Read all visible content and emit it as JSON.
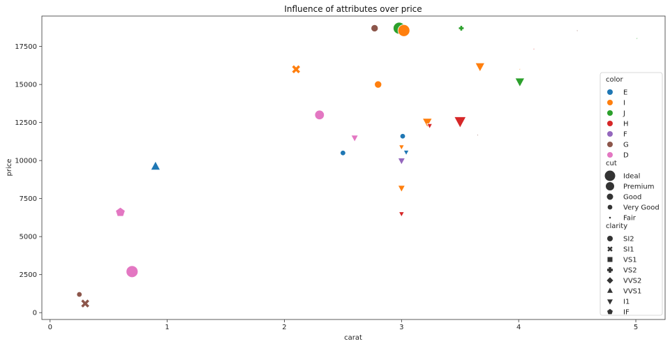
{
  "chart_data": {
    "type": "scatter",
    "title": "Influence of attributes over price",
    "xlabel": "carat",
    "ylabel": "price",
    "xlim": [
      -0.07,
      5.25
    ],
    "ylim": [
      -450,
      19500
    ],
    "x_ticks": [
      0,
      1,
      2,
      3,
      4,
      5
    ],
    "y_ticks": [
      0,
      2500,
      5000,
      7500,
      10000,
      12500,
      15000,
      17500
    ],
    "grid": false,
    "legend_placement": "right",
    "legend": {
      "color": {
        "title": "color",
        "entries": [
          {
            "label": "E",
            "color": "#1f77b4"
          },
          {
            "label": "I",
            "color": "#ff7f0e"
          },
          {
            "label": "J",
            "color": "#2ca02c"
          },
          {
            "label": "H",
            "color": "#d62728"
          },
          {
            "label": "F",
            "color": "#9467bd"
          },
          {
            "label": "G",
            "color": "#8c564b"
          },
          {
            "label": "D",
            "color": "#e377c2"
          }
        ]
      },
      "cut": {
        "title": "cut",
        "entries": [
          {
            "label": "Ideal",
            "size": 1.0
          },
          {
            "label": "Premium",
            "size": 0.8
          },
          {
            "label": "Good",
            "size": 0.6
          },
          {
            "label": "Very Good",
            "size": 0.45
          },
          {
            "label": "Fair",
            "size": 0.15
          }
        ]
      },
      "clarity": {
        "title": "clarity",
        "entries": [
          {
            "label": "SI2",
            "marker": "circle"
          },
          {
            "label": "SI1",
            "marker": "x"
          },
          {
            "label": "VS1",
            "marker": "square"
          },
          {
            "label": "VS2",
            "marker": "plus"
          },
          {
            "label": "VVS2",
            "marker": "diamond"
          },
          {
            "label": "VVS1",
            "marker": "triangle-up"
          },
          {
            "label": "I1",
            "marker": "triangle-down"
          },
          {
            "label": "IF",
            "marker": "pentagon"
          }
        ]
      }
    },
    "points": [
      {
        "x": 2.98,
        "y": 18700,
        "color": "J",
        "cut": "Ideal",
        "clarity": "SI2"
      },
      {
        "x": 3.02,
        "y": 18550,
        "color": "I",
        "cut": "Ideal",
        "clarity": "SI2"
      },
      {
        "x": 3.51,
        "y": 18700,
        "color": "J",
        "cut": "Very Good",
        "clarity": "VS2"
      },
      {
        "x": 4.5,
        "y": 18530,
        "color": "G",
        "cut": "Fair",
        "clarity": "I1"
      },
      {
        "x": 5.01,
        "y": 18020,
        "color": "J",
        "cut": "Fair",
        "clarity": "I1"
      },
      {
        "x": 4.13,
        "y": 17330,
        "color": "H",
        "cut": "Fair",
        "clarity": "I1"
      },
      {
        "x": 3.67,
        "y": 16200,
        "color": "I",
        "cut": "Premium",
        "clarity": "I1"
      },
      {
        "x": 4.01,
        "y": 16000,
        "color": "I",
        "cut": "Fair",
        "clarity": "I1"
      },
      {
        "x": 4.01,
        "y": 15200,
        "color": "J",
        "cut": "Premium",
        "clarity": "I1"
      },
      {
        "x": 3.5,
        "y": 12600,
        "color": "H",
        "cut": "Ideal",
        "clarity": "I1"
      },
      {
        "x": 3.22,
        "y": 12550,
        "color": "I",
        "cut": "Premium",
        "clarity": "I1"
      },
      {
        "x": 3.24,
        "y": 12300,
        "color": "H",
        "cut": "Very Good",
        "clarity": "I1"
      },
      {
        "x": 3.65,
        "y": 11670,
        "color": "G",
        "cut": "Fair",
        "clarity": "I1"
      },
      {
        "x": 3.01,
        "y": 11600,
        "color": "E",
        "cut": "Very Good",
        "clarity": "SI2"
      },
      {
        "x": 3.04,
        "y": 10550,
        "color": "E",
        "cut": "Very Good",
        "clarity": "I1"
      },
      {
        "x": 3.0,
        "y": 10900,
        "color": "I",
        "cut": "Very Good",
        "clarity": "I1"
      },
      {
        "x": 3.0,
        "y": 10000,
        "color": "F",
        "cut": "Good",
        "clarity": "I1"
      },
      {
        "x": 3.0,
        "y": 8200,
        "color": "I",
        "cut": "Good",
        "clarity": "I1"
      },
      {
        "x": 3.0,
        "y": 6500,
        "color": "H",
        "cut": "Very Good",
        "clarity": "I1"
      },
      {
        "x": 2.6,
        "y": 11500,
        "color": "D",
        "cut": "Good",
        "clarity": "I1"
      },
      {
        "x": 2.8,
        "y": 15000,
        "color": "I",
        "cut": "Good",
        "clarity": "SI2"
      },
      {
        "x": 2.77,
        "y": 18700,
        "color": "G",
        "cut": "Good",
        "clarity": "SI2"
      },
      {
        "x": 0.6,
        "y": 6600,
        "color": "D",
        "cut": "Premium",
        "clarity": "IF"
      },
      {
        "x": 0.9,
        "y": 9600,
        "color": "E",
        "cut": "Premium",
        "clarity": "VVS1"
      },
      {
        "x": 0.3,
        "y": 600,
        "color": "G",
        "cut": "Premium",
        "clarity": "SI1"
      },
      {
        "x": 0.25,
        "y": 1200,
        "color": "G",
        "cut": "Very Good",
        "clarity": "SI2"
      },
      {
        "x": 0.7,
        "y": 2700,
        "color": "D",
        "cut": "Ideal",
        "clarity": "SI2"
      },
      {
        "x": 2.5,
        "y": 10500,
        "color": "E",
        "cut": "Very Good",
        "clarity": "SI2"
      },
      {
        "x": 2.3,
        "y": 13000,
        "color": "D",
        "cut": "Premium",
        "clarity": "SI2"
      },
      {
        "x": 2.1,
        "y": 16000,
        "color": "I",
        "cut": "Premium",
        "clarity": "SI1"
      }
    ]
  }
}
